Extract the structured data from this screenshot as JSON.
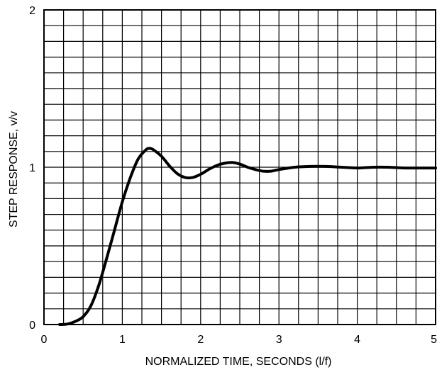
{
  "chart_data": {
    "type": "line",
    "xlabel": "NORMALIZED TIME, SECONDS (l/f)",
    "ylabel": "STEP RESPONSE, v/v",
    "xlim": [
      0,
      5
    ],
    "ylim": [
      0,
      2
    ],
    "x_ticks": [
      "0",
      "1",
      "2",
      "3",
      "4",
      "5"
    ],
    "y_ticks": [
      "0",
      "1",
      "2"
    ],
    "grid": true,
    "grid_divisions": {
      "x": 20,
      "y": 20
    },
    "line_color": "#000000",
    "series": [
      {
        "x": [
          0.2,
          0.3,
          0.4,
          0.5,
          0.6,
          0.7,
          0.8,
          0.9,
          1.0,
          1.1,
          1.2,
          1.3,
          1.35,
          1.4,
          1.5,
          1.6,
          1.7,
          1.8,
          1.9,
          2.0,
          2.1,
          2.2,
          2.3,
          2.4,
          2.5,
          2.6,
          2.7,
          2.8,
          2.9,
          3.0,
          3.2,
          3.4,
          3.6,
          3.8,
          4.0,
          4.2,
          4.4,
          4.6,
          4.8,
          5.0
        ],
        "y": [
          0.0,
          0.003,
          0.02,
          0.05,
          0.12,
          0.25,
          0.42,
          0.6,
          0.78,
          0.93,
          1.05,
          1.11,
          1.12,
          1.11,
          1.07,
          1.01,
          0.96,
          0.935,
          0.935,
          0.955,
          0.985,
          1.01,
          1.025,
          1.03,
          1.02,
          1.0,
          0.985,
          0.975,
          0.975,
          0.985,
          1.0,
          1.005,
          1.005,
          1.0,
          0.995,
          1.0,
          1.0,
          0.995,
          0.995,
          0.995
        ]
      }
    ]
  }
}
